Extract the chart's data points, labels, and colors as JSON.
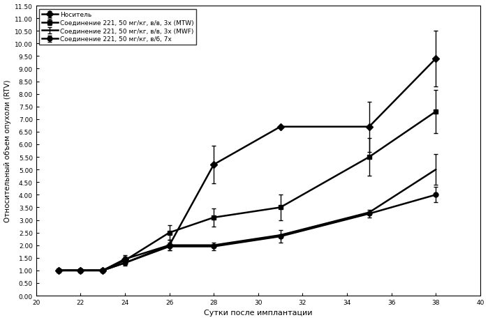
{
  "title": "",
  "xlabel": "Сутки после имплантации",
  "ylabel": "Относительный объем опухоли (RTV)",
  "xlim": [
    20,
    40
  ],
  "ylim": [
    0.0,
    11.5
  ],
  "ytick_labels": [
    "0.00",
    "0.50",
    "1.00",
    "1.50",
    "2.00",
    "2.50",
    "3.00",
    "3.50",
    "4.00",
    "4.50",
    "5.00",
    "5.50",
    "6.00",
    "6.50",
    "7.00",
    "7.50",
    "8.00",
    "8.50",
    "9.00",
    "9.50",
    "10.00",
    "10.50",
    "11.00",
    "11.50"
  ],
  "ytick_values": [
    0.0,
    0.5,
    1.0,
    1.5,
    2.0,
    2.5,
    3.0,
    3.5,
    4.0,
    4.5,
    5.0,
    5.5,
    6.0,
    6.5,
    7.0,
    7.5,
    8.0,
    8.5,
    9.0,
    9.5,
    10.0,
    10.5,
    11.0,
    11.5
  ],
  "xticks": [
    20,
    22,
    24,
    26,
    28,
    30,
    32,
    34,
    36,
    38,
    40
  ],
  "series": [
    {
      "label": "Носитель",
      "x": [
        21,
        22,
        23,
        24,
        26,
        28,
        31,
        35,
        38
      ],
      "y": [
        1.0,
        1.0,
        1.0,
        1.45,
        2.0,
        5.2,
        6.7,
        6.7,
        9.4
      ],
      "yerr": [
        0.05,
        0.05,
        0.05,
        0.15,
        0.2,
        0.75,
        0.0,
        1.0,
        1.1
      ],
      "marker": "D",
      "linestyle": "-",
      "color": "#000000",
      "linewidth": 1.8,
      "markersize": 5
    },
    {
      "label": "Соединение 221, 50 мг/кг, в/в, 3х (MTW)",
      "x": [
        21,
        22,
        23,
        24,
        26,
        28,
        31,
        35,
        38
      ],
      "y": [
        1.0,
        1.0,
        1.0,
        1.4,
        2.5,
        3.1,
        3.5,
        5.5,
        7.3
      ],
      "yerr": [
        0.05,
        0.05,
        0.05,
        0.15,
        0.3,
        0.35,
        0.5,
        0.75,
        0.85
      ],
      "marker": "s",
      "linestyle": "-",
      "color": "#000000",
      "linewidth": 1.8,
      "markersize": 5
    },
    {
      "label": "Соединение 221, 50 мг/кг, в/в, 3х (MWF)",
      "x": [
        21,
        22,
        23,
        24,
        26,
        28,
        31,
        35,
        38
      ],
      "y": [
        1.0,
        1.0,
        1.0,
        1.3,
        2.0,
        2.0,
        2.4,
        3.3,
        5.0
      ],
      "yerr": [
        0.0,
        0.0,
        0.0,
        0.0,
        0.0,
        0.0,
        0.0,
        0.0,
        0.6
      ],
      "marker": "None",
      "linestyle": "-",
      "color": "#000000",
      "linewidth": 1.8,
      "markersize": 0
    },
    {
      "label": "Соединение 221, 50 мг/кг, в/б, 7х",
      "x": [
        21,
        22,
        23,
        24,
        26,
        28,
        31,
        35,
        38
      ],
      "y": [
        1.0,
        1.0,
        1.0,
        1.3,
        1.95,
        1.95,
        2.35,
        3.25,
        4.0
      ],
      "yerr": [
        0.05,
        0.05,
        0.05,
        0.1,
        0.15,
        0.15,
        0.25,
        0.15,
        0.3
      ],
      "marker": "o",
      "linestyle": "-",
      "color": "#000000",
      "linewidth": 1.8,
      "markersize": 5
    }
  ],
  "legend_loc": "upper left",
  "background_color": "#ffffff",
  "font_color": "#000000"
}
